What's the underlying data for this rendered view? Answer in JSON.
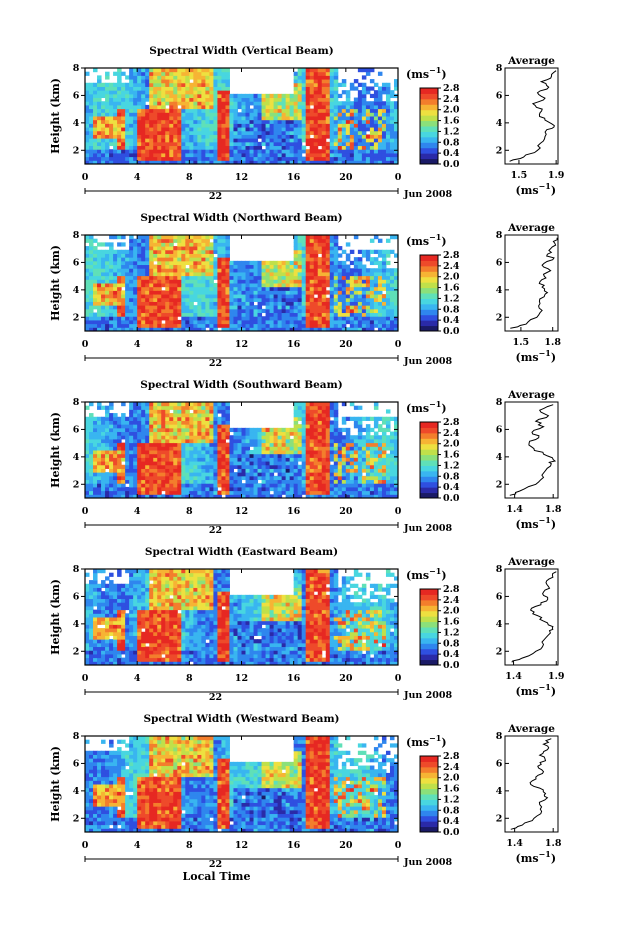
{
  "colors": {
    "colormap": [
      "#1a1a66",
      "#2a2aa8",
      "#2f4fe0",
      "#2f86ee",
      "#39b5f0",
      "#48d6e0",
      "#5fe0b8",
      "#8be07a",
      "#c0e04a",
      "#eee040",
      "#f6b434",
      "#f37e2c",
      "#ee4a2a",
      "#e62822"
    ],
    "axis": "#000000",
    "background": "#ffffff"
  },
  "panels": [
    {
      "title": "Spectral Width (Vertical Beam)"
    },
    {
      "title": "Spectral Width (Northward Beam)"
    },
    {
      "title": "Spectral Width (Southward Beam)"
    },
    {
      "title": "Spectral Width (Eastward Beam)"
    },
    {
      "title": "Spectral Width (Westward Beam)"
    }
  ],
  "labels": {
    "ylabel": "Height (km)",
    "xlabel": "Local Time",
    "date_label": "Jun 2008",
    "day_label": "22",
    "unit_label": "(ms",
    "unit_sup": "−1",
    "unit_close": ")",
    "avg_title": "Average"
  },
  "chart_data": {
    "type": "heatmap",
    "x_ticks": [
      "0",
      "4",
      "8",
      "12",
      "16",
      "20",
      "0"
    ],
    "y_ticks": [
      "2",
      "4",
      "6",
      "8"
    ],
    "xlim": [
      0,
      24
    ],
    "ylim": [
      1,
      8
    ],
    "colorbar_ticks": [
      "2.8",
      "2.4",
      "2.0",
      "1.6",
      "1.2",
      "0.8",
      "0.4",
      "0.0"
    ],
    "colorbar_range": [
      0.0,
      2.8
    ],
    "averages": [
      {
        "xticks": [
          "1.5",
          "1.9"
        ],
        "xlim": [
          1.35,
          1.92
        ],
        "ylim": [
          1,
          8
        ],
        "yticks": [
          "2",
          "4",
          "6",
          "8"
        ],
        "h": [
          1.2,
          1.5,
          2,
          2.5,
          3,
          3.5,
          3.8,
          4.2,
          4.6,
          5,
          5.4,
          5.8,
          6.2,
          6.6,
          7,
          7.4,
          7.8
        ],
        "v": [
          1.4,
          1.55,
          1.7,
          1.73,
          1.78,
          1.8,
          1.88,
          1.78,
          1.72,
          1.75,
          1.65,
          1.78,
          1.7,
          1.82,
          1.74,
          1.85,
          1.9
        ]
      },
      {
        "xticks": [
          "1.5",
          "1.8"
        ],
        "xlim": [
          1.35,
          1.85
        ],
        "ylim": [
          1,
          8
        ],
        "yticks": [
          "2",
          "4",
          "6",
          "8"
        ],
        "h": [
          1.2,
          1.5,
          2,
          2.5,
          3,
          3.5,
          3.8,
          4.2,
          4.6,
          5,
          5.4,
          5.8,
          6.2,
          6.6,
          7,
          7.4,
          7.8
        ],
        "v": [
          1.4,
          1.55,
          1.65,
          1.7,
          1.68,
          1.72,
          1.75,
          1.7,
          1.68,
          1.72,
          1.78,
          1.7,
          1.8,
          1.75,
          1.78,
          1.82,
          1.84
        ]
      },
      {
        "xticks": [
          "1.4",
          "1.8"
        ],
        "xlim": [
          1.3,
          1.85
        ],
        "ylim": [
          1,
          8
        ],
        "yticks": [
          "2",
          "4",
          "6",
          "8"
        ],
        "h": [
          1.2,
          1.5,
          2,
          2.5,
          3,
          3.5,
          3.8,
          4.2,
          4.6,
          5,
          5.4,
          5.8,
          6.2,
          6.6,
          7,
          7.4,
          7.8
        ],
        "v": [
          1.35,
          1.45,
          1.62,
          1.7,
          1.72,
          1.78,
          1.8,
          1.7,
          1.6,
          1.55,
          1.65,
          1.58,
          1.7,
          1.62,
          1.75,
          1.66,
          1.8
        ]
      },
      {
        "xticks": [
          "1.4",
          "1.9"
        ],
        "xlim": [
          1.3,
          1.92
        ],
        "ylim": [
          1,
          8
        ],
        "yticks": [
          "2",
          "4",
          "6",
          "8"
        ],
        "h": [
          1.2,
          1.5,
          2,
          2.5,
          3,
          3.5,
          3.8,
          4.2,
          4.6,
          5,
          5.4,
          5.8,
          6.2,
          6.6,
          7,
          7.4,
          7.8
        ],
        "v": [
          1.38,
          1.5,
          1.66,
          1.75,
          1.78,
          1.82,
          1.86,
          1.75,
          1.68,
          1.6,
          1.72,
          1.8,
          1.74,
          1.82,
          1.78,
          1.86,
          1.9
        ]
      },
      {
        "xticks": [
          "1.4",
          "1.8"
        ],
        "xlim": [
          1.3,
          1.85
        ],
        "ylim": [
          1,
          8
        ],
        "yticks": [
          "2",
          "4",
          "6",
          "8"
        ],
        "h": [
          1.2,
          1.5,
          2,
          2.5,
          3,
          3.5,
          3.8,
          4.2,
          4.6,
          5,
          5.4,
          5.8,
          6.2,
          6.6,
          7,
          7.4,
          7.8
        ],
        "v": [
          1.36,
          1.48,
          1.6,
          1.68,
          1.66,
          1.74,
          1.72,
          1.66,
          1.56,
          1.62,
          1.7,
          1.64,
          1.72,
          1.66,
          1.74,
          1.7,
          1.78
        ]
      }
    ]
  }
}
